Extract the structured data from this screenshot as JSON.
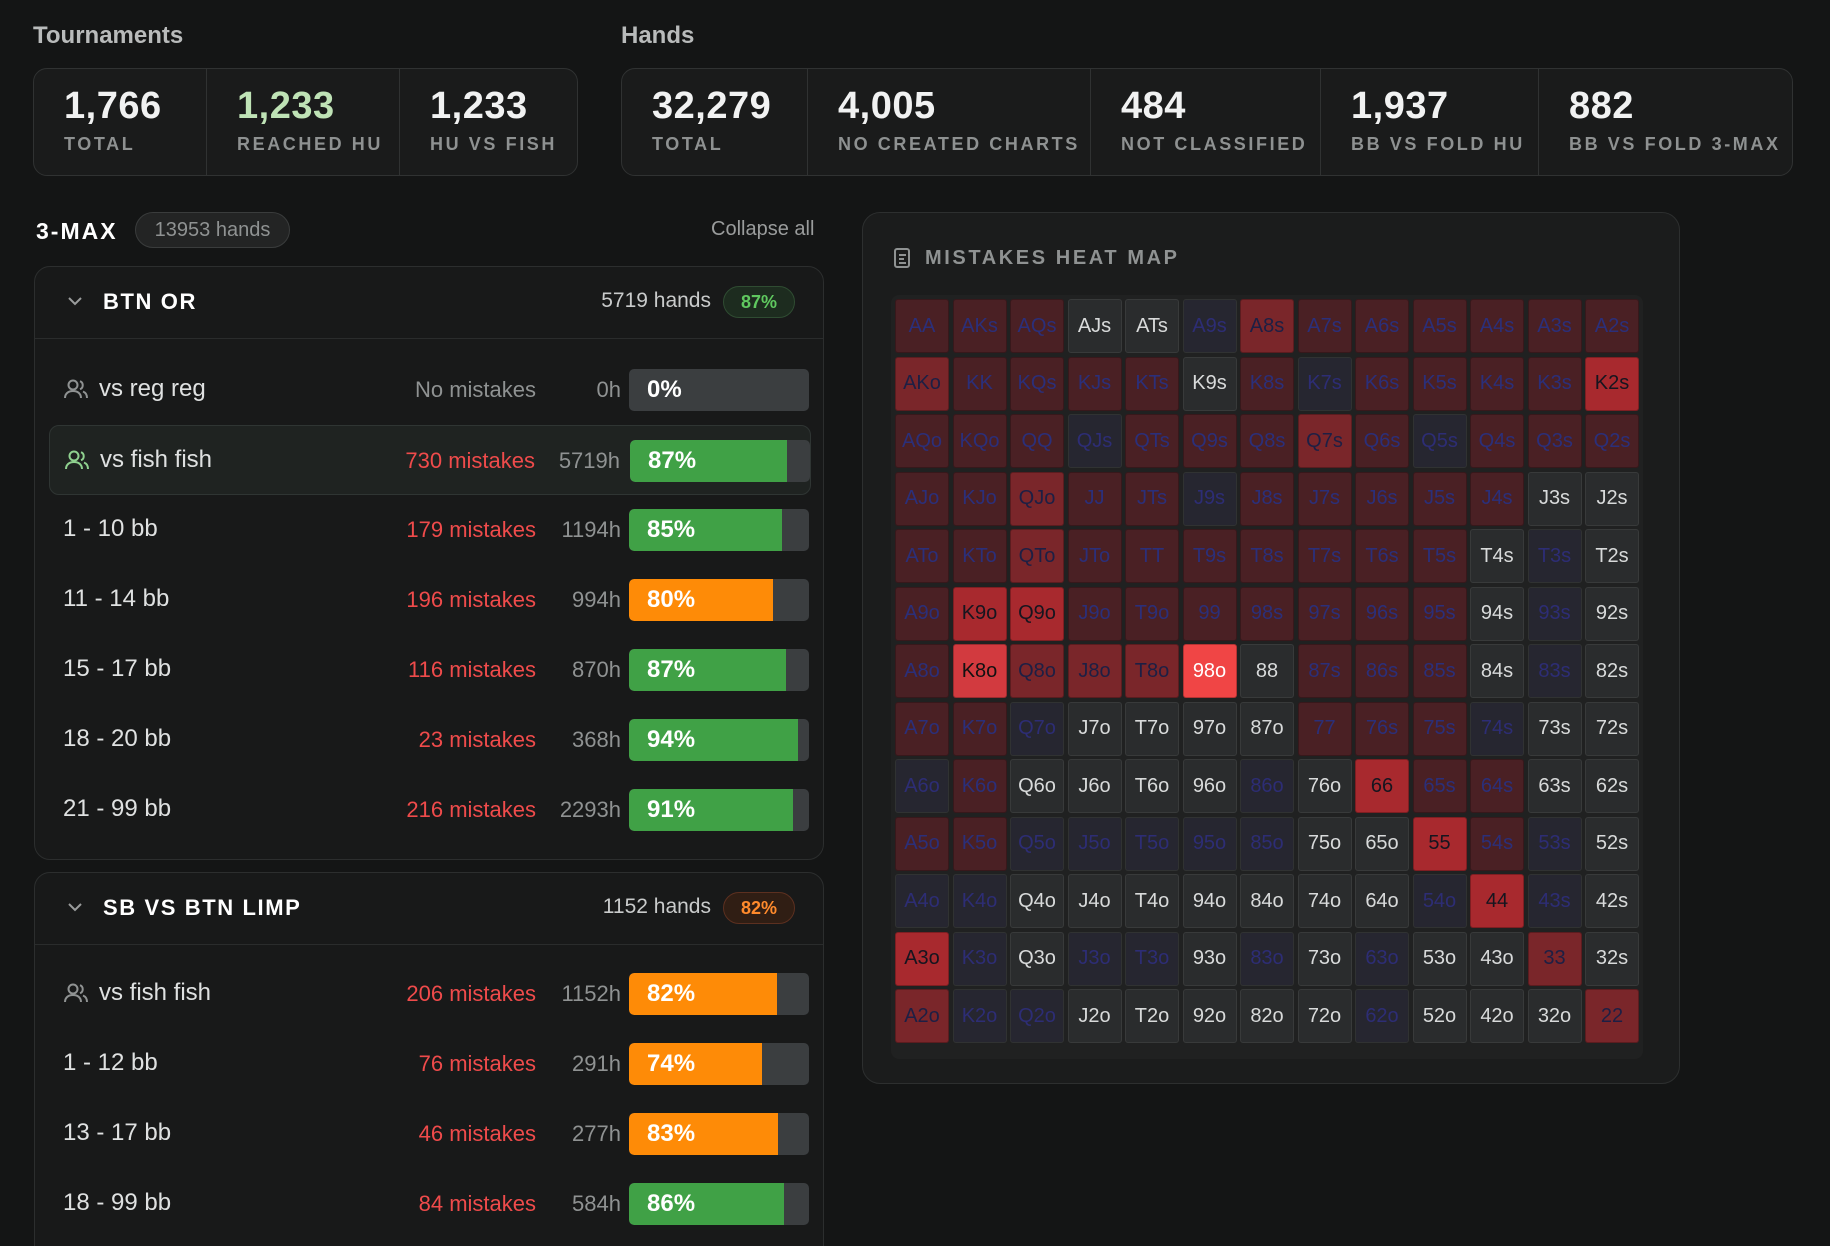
{
  "tournaments": {
    "title": "Tournaments",
    "stats": [
      {
        "value": "1,766",
        "label": "TOTAL",
        "color": "#f1f2f2"
      },
      {
        "value": "1,233",
        "label": "REACHED HU",
        "color": "#bfe3b6"
      },
      {
        "value": "1,233",
        "label": "HU VS FISH",
        "color": "#f1f2f2"
      }
    ]
  },
  "hands": {
    "title": "Hands",
    "stats": [
      {
        "value": "32,279",
        "label": "TOTAL"
      },
      {
        "value": "4,005",
        "label": "NO CREATED CHARTS"
      },
      {
        "value": "484",
        "label": "NOT CLASSIFIED"
      },
      {
        "value": "1,937",
        "label": "BB VS FOLD HU"
      },
      {
        "value": "882",
        "label": "BB VS FOLD 3-MAX"
      }
    ]
  },
  "group": {
    "title": "3-MAX",
    "hands_pill": "13953 hands",
    "collapse_label": "Collapse all"
  },
  "cards": [
    {
      "title": "BTN OR",
      "hands": "5719 hands",
      "badge": "87%",
      "badge_color": "green",
      "rows": [
        {
          "label": "vs reg reg",
          "icon": "users-icon",
          "mistakes": "No mistakes",
          "hours": "0h",
          "pct": "0%",
          "fill": 0,
          "color": "green",
          "highlight": false
        },
        {
          "label": "vs fish fish",
          "icon": "users-icon",
          "mistakes": "730 mistakes",
          "hours": "5719h",
          "pct": "87%",
          "fill": 0.87,
          "color": "green",
          "highlight": true
        },
        {
          "label": "1 - 10 bb",
          "mistakes": "179 mistakes",
          "hours": "1194h",
          "pct": "85%",
          "fill": 0.85,
          "color": "green"
        },
        {
          "label": "11 - 14 bb",
          "mistakes": "196 mistakes",
          "hours": "994h",
          "pct": "80%",
          "fill": 0.8,
          "color": "orange"
        },
        {
          "label": "15 - 17 bb",
          "mistakes": "116 mistakes",
          "hours": "870h",
          "pct": "87%",
          "fill": 0.87,
          "color": "green"
        },
        {
          "label": "18 - 20 bb",
          "mistakes": "23 mistakes",
          "hours": "368h",
          "pct": "94%",
          "fill": 0.94,
          "color": "green"
        },
        {
          "label": "21 - 99 bb",
          "mistakes": "216 mistakes",
          "hours": "2293h",
          "pct": "91%",
          "fill": 0.91,
          "color": "green"
        }
      ]
    },
    {
      "title": "SB VS BTN LIMP",
      "hands": "1152 hands",
      "badge": "82%",
      "badge_color": "orange",
      "rows": [
        {
          "label": "vs fish fish",
          "icon": "users-icon",
          "mistakes": "206 mistakes",
          "hours": "1152h",
          "pct": "82%",
          "fill": 0.82,
          "color": "orange"
        },
        {
          "label": "1 - 12 bb",
          "mistakes": "76 mistakes",
          "hours": "291h",
          "pct": "74%",
          "fill": 0.74,
          "color": "orange"
        },
        {
          "label": "13 - 17 bb",
          "mistakes": "46 mistakes",
          "hours": "277h",
          "pct": "83%",
          "fill": 0.83,
          "color": "orange"
        },
        {
          "label": "18 - 99 bb",
          "mistakes": "84 mistakes",
          "hours": "584h",
          "pct": "86%",
          "fill": 0.86,
          "color": "green"
        }
      ]
    }
  ],
  "heatmap": {
    "title": "MISTAKES HEAT MAP",
    "icon": "chart-list-icon",
    "rows": [
      [
        "AA",
        "AKs",
        "AQs",
        "AJs",
        "ATs",
        "A9s",
        "A8s",
        "A7s",
        "A6s",
        "A5s",
        "A4s",
        "A3s",
        "A2s"
      ],
      [
        "AKo",
        "KK",
        "KQs",
        "KJs",
        "KTs",
        "K9s",
        "K8s",
        "K7s",
        "K6s",
        "K5s",
        "K4s",
        "K3s",
        "K2s"
      ],
      [
        "AQo",
        "KQo",
        "QQ",
        "QJs",
        "QTs",
        "Q9s",
        "Q8s",
        "Q7s",
        "Q6s",
        "Q5s",
        "Q4s",
        "Q3s",
        "Q2s"
      ],
      [
        "AJo",
        "KJo",
        "QJo",
        "JJ",
        "JTs",
        "J9s",
        "J8s",
        "J7s",
        "J6s",
        "J5s",
        "J4s",
        "J3s",
        "J2s"
      ],
      [
        "ATo",
        "KTo",
        "QTo",
        "JTo",
        "TT",
        "T9s",
        "T8s",
        "T7s",
        "T6s",
        "T5s",
        "T4s",
        "T3s",
        "T2s"
      ],
      [
        "A9o",
        "K9o",
        "Q9o",
        "J9o",
        "T9o",
        "99",
        "98s",
        "97s",
        "96s",
        "95s",
        "94s",
        "93s",
        "92s"
      ],
      [
        "A8o",
        "K8o",
        "Q8o",
        "J8o",
        "T8o",
        "98o",
        "88",
        "87s",
        "86s",
        "85s",
        "84s",
        "83s",
        "82s"
      ],
      [
        "A7o",
        "K7o",
        "Q7o",
        "J7o",
        "T7o",
        "97o",
        "87o",
        "77",
        "76s",
        "75s",
        "74s",
        "73s",
        "72s"
      ],
      [
        "A6o",
        "K6o",
        "Q6o",
        "J6o",
        "T6o",
        "96o",
        "86o",
        "76o",
        "66",
        "65s",
        "64s",
        "63s",
        "62s"
      ],
      [
        "A5o",
        "K5o",
        "Q5o",
        "J5o",
        "T5o",
        "95o",
        "85o",
        "75o",
        "65o",
        "55",
        "54s",
        "53s",
        "52s"
      ],
      [
        "A4o",
        "K4o",
        "Q4o",
        "J4o",
        "T4o",
        "94o",
        "84o",
        "74o",
        "64o",
        "54o",
        "44",
        "43s",
        "42s"
      ],
      [
        "A3o",
        "K3o",
        "Q3o",
        "J3o",
        "T3o",
        "93o",
        "83o",
        "73o",
        "63o",
        "53o",
        "43o",
        "33",
        "32s"
      ],
      [
        "A2o",
        "K2o",
        "Q2o",
        "J2o",
        "T2o",
        "92o",
        "82o",
        "72o",
        "62o",
        "52o",
        "42o",
        "32o",
        "22"
      ]
    ],
    "levels": [
      [
        2,
        2,
        2,
        0,
        0,
        1,
        3,
        2,
        2,
        2,
        2,
        2,
        2
      ],
      [
        3,
        2,
        2,
        2,
        2,
        0,
        2,
        1,
        2,
        2,
        2,
        2,
        4
      ],
      [
        2,
        2,
        2,
        1,
        2,
        2,
        2,
        3,
        2,
        1,
        2,
        2,
        2
      ],
      [
        2,
        2,
        3,
        2,
        2,
        1,
        2,
        2,
        2,
        2,
        2,
        0,
        0
      ],
      [
        2,
        2,
        3,
        2,
        2,
        2,
        2,
        2,
        2,
        2,
        0,
        1,
        0
      ],
      [
        2,
        4,
        4,
        2,
        2,
        2,
        2,
        2,
        2,
        2,
        0,
        1,
        0
      ],
      [
        2,
        5,
        3,
        3,
        3,
        6,
        0,
        2,
        2,
        2,
        0,
        1,
        0
      ],
      [
        2,
        2,
        1,
        0,
        0,
        0,
        0,
        2,
        2,
        2,
        1,
        0,
        0
      ],
      [
        1,
        2,
        0,
        0,
        0,
        0,
        1,
        0,
        4,
        2,
        2,
        0,
        0
      ],
      [
        2,
        2,
        1,
        1,
        1,
        1,
        1,
        0,
        0,
        4,
        2,
        1,
        0
      ],
      [
        1,
        1,
        0,
        0,
        0,
        0,
        0,
        0,
        0,
        1,
        4,
        1,
        0
      ],
      [
        4,
        1,
        0,
        1,
        1,
        0,
        1,
        0,
        1,
        0,
        0,
        3,
        0
      ],
      [
        3,
        1,
        1,
        0,
        0,
        0,
        0,
        0,
        1,
        0,
        0,
        0,
        3
      ]
    ]
  }
}
